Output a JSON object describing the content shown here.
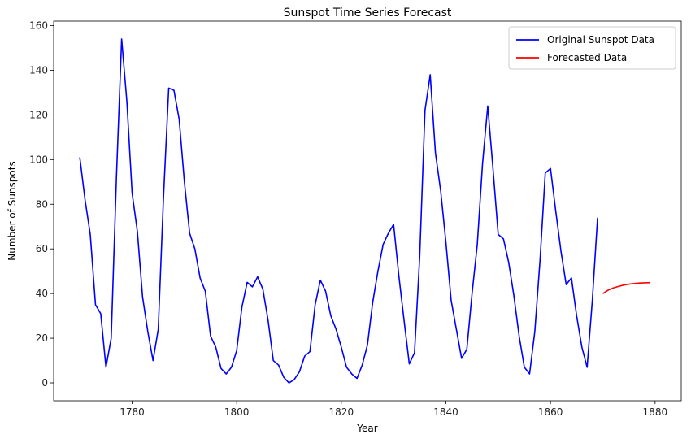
{
  "chart_data": {
    "type": "line",
    "title": "Sunspot Time Series Forecast",
    "xlabel": "Year",
    "ylabel": "Number of Sunspots",
    "xlim": [
      1765,
      1885
    ],
    "ylim": [
      -8,
      162
    ],
    "xticks": [
      1780,
      1800,
      1820,
      1840,
      1860,
      1880
    ],
    "yticks": [
      0,
      20,
      40,
      60,
      80,
      100,
      120,
      140,
      160
    ],
    "grid": false,
    "legend_position": "top-right",
    "series": [
      {
        "name": "Original Sunspot Data",
        "color": "#0000ff",
        "x": [
          1770,
          1771,
          1772,
          1773,
          1774,
          1775,
          1776,
          1777,
          1778,
          1779,
          1780,
          1781,
          1782,
          1783,
          1784,
          1785,
          1786,
          1787,
          1788,
          1789,
          1790,
          1791,
          1792,
          1793,
          1794,
          1795,
          1796,
          1797,
          1798,
          1799,
          1800,
          1801,
          1802,
          1803,
          1804,
          1805,
          1806,
          1807,
          1808,
          1809,
          1810,
          1811,
          1812,
          1813,
          1814,
          1815,
          1816,
          1817,
          1818,
          1819,
          1820,
          1821,
          1822,
          1823,
          1824,
          1825,
          1826,
          1827,
          1828,
          1829,
          1830,
          1831,
          1832,
          1833,
          1834,
          1835,
          1836,
          1837,
          1838,
          1839,
          1840,
          1841,
          1842,
          1843,
          1844,
          1845,
          1846,
          1847,
          1848,
          1849,
          1850,
          1851,
          1852,
          1853,
          1854,
          1855,
          1856,
          1857,
          1858,
          1859,
          1860,
          1861,
          1862,
          1863,
          1864,
          1865,
          1866,
          1867,
          1868,
          1869
        ],
        "y": [
          101,
          82,
          66.5,
          35,
          31,
          7,
          20,
          92,
          154,
          126,
          85,
          68,
          38.5,
          23,
          10,
          24,
          83,
          132,
          131,
          118,
          90,
          67,
          60,
          47,
          41,
          21,
          16,
          6.5,
          4,
          7,
          14.5,
          34,
          45,
          43,
          47.5,
          42,
          28,
          10,
          8,
          2.5,
          0,
          1.5,
          5,
          12,
          14,
          35,
          46,
          41,
          30,
          24,
          16,
          7,
          4,
          2,
          8,
          17,
          36,
          50,
          62,
          67,
          71,
          48,
          28,
          8.5,
          13.5,
          57,
          122,
          138,
          103,
          86,
          63,
          37,
          24,
          11,
          15,
          40,
          62,
          98,
          124,
          96,
          66.5,
          64.5,
          54,
          39,
          21,
          7,
          4,
          23,
          55,
          94,
          96,
          77,
          59,
          44,
          47,
          30,
          16,
          7,
          37,
          74
        ]
      },
      {
        "name": "Forecasted Data",
        "color": "#ff0000",
        "x": [
          1870,
          1871,
          1872,
          1873,
          1874,
          1875,
          1876,
          1877,
          1878,
          1879
        ],
        "y": [
          40,
          41.5,
          42.5,
          43.2,
          43.8,
          44.2,
          44.5,
          44.7,
          44.8,
          44.9
        ]
      }
    ]
  }
}
